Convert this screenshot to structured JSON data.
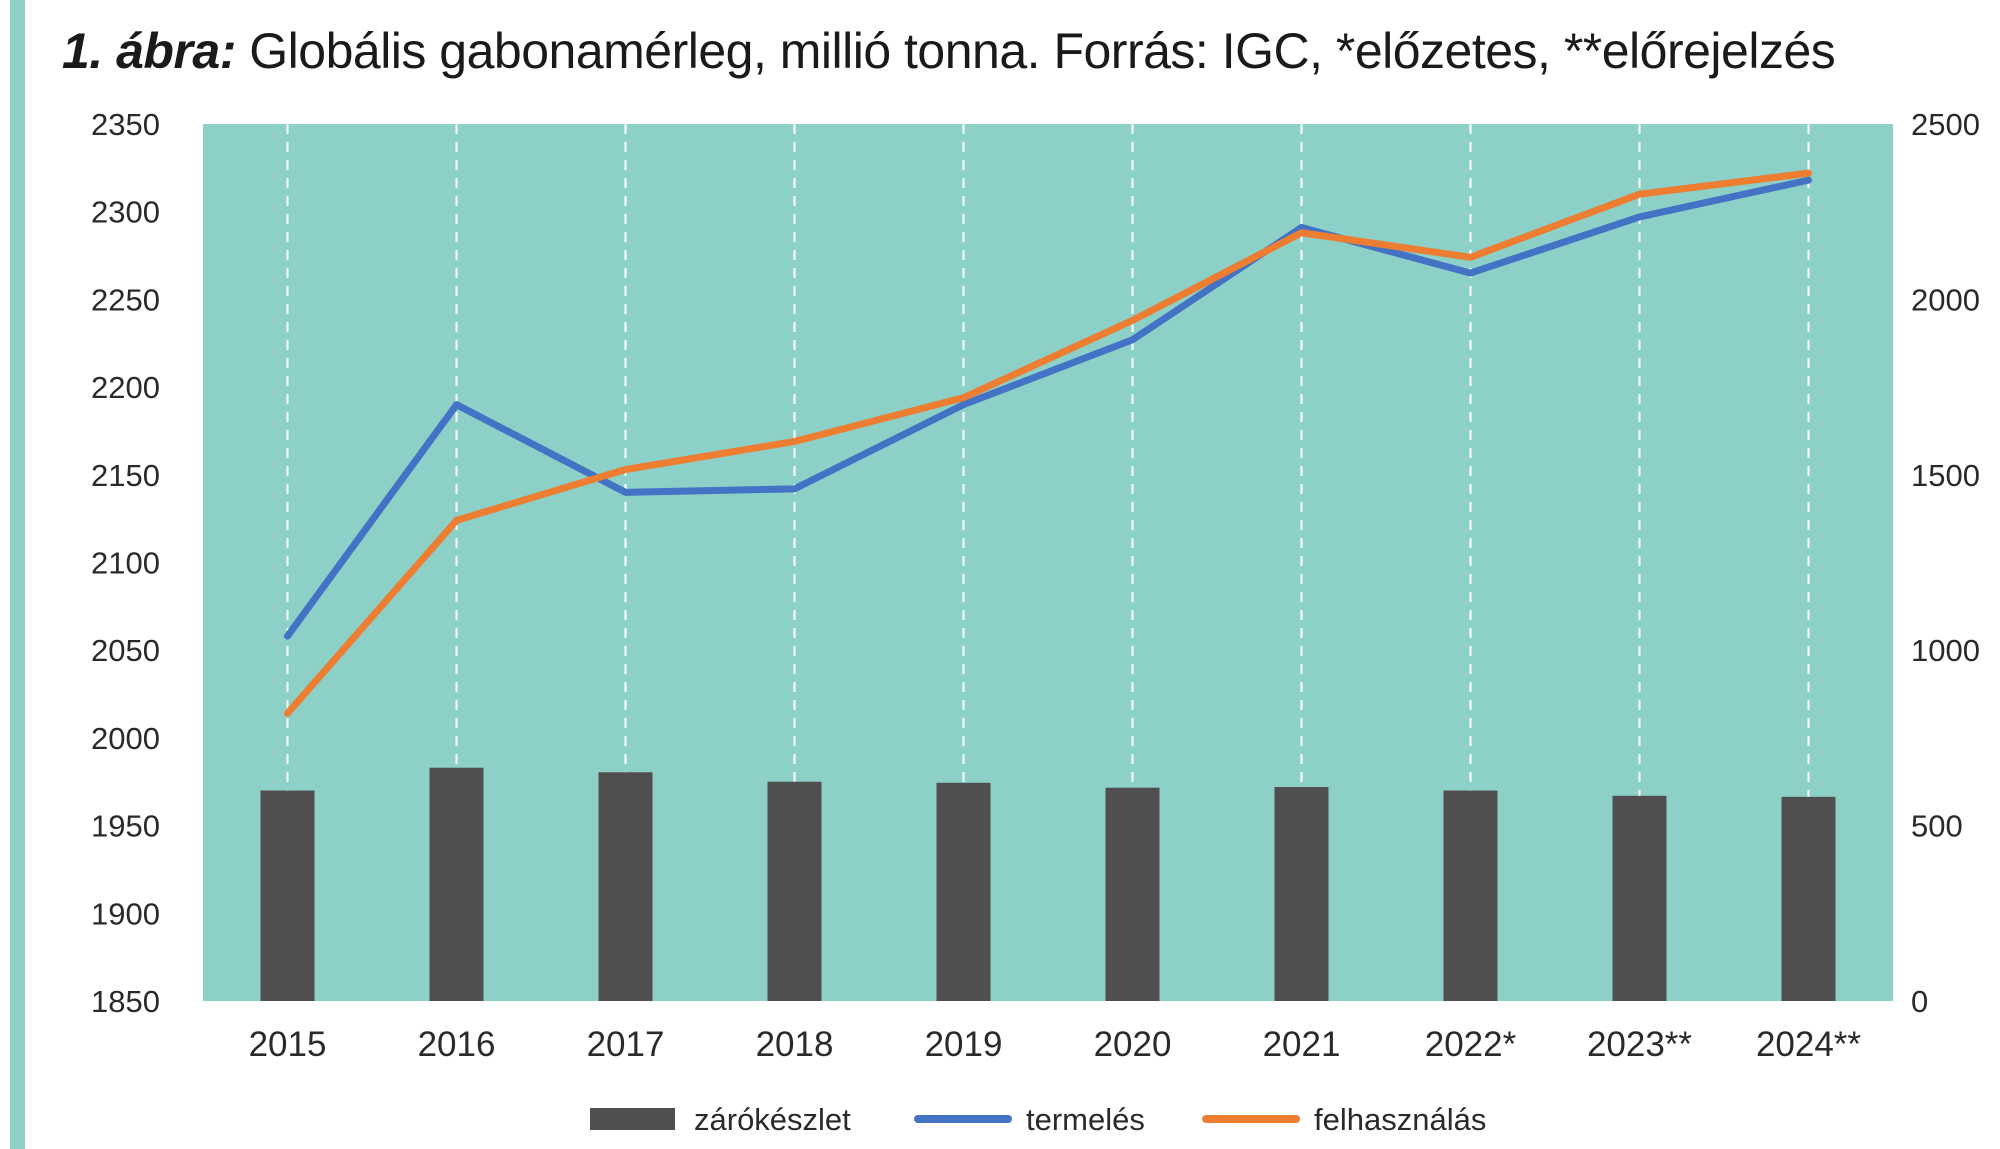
{
  "title": {
    "prefix": "1. ábra:",
    "text": "Globális gabonamérleg, millió tonna. Forrás: IGC, *előzetes, **előrejelzés"
  },
  "colors": {
    "plot_bg": "#8dd0c8",
    "bars": "#4f4f50",
    "termeles": "#4472c4",
    "felhasznalas": "#ed7d31",
    "accent": "#8fd1c9"
  },
  "chart_data": {
    "type": "bar+line",
    "categories": [
      "2015",
      "2016",
      "2017",
      "2018",
      "2019",
      "2020",
      "2021",
      "2022*",
      "2023**",
      "2024**"
    ],
    "y_left": {
      "min": 1850,
      "max": 2350,
      "step": 50,
      "ticks": [
        "2350",
        "2300",
        "2250",
        "2200",
        "2150",
        "2100",
        "2050",
        "2000",
        "1950",
        "1900",
        "1850"
      ]
    },
    "y_right": {
      "min": 0,
      "max": 2500,
      "step": 500,
      "ticks": [
        "2500",
        "2000",
        "1500",
        "1000",
        "500",
        "0"
      ]
    },
    "series": [
      {
        "name": "zárókészlet",
        "type": "bar",
        "axis": "right",
        "values": [
          600,
          665,
          652,
          625,
          622,
          608,
          610,
          600,
          585,
          582
        ]
      },
      {
        "name": "termelés",
        "type": "line",
        "axis": "left",
        "values": [
          2058,
          2190,
          2140,
          2142,
          2190,
          2227,
          2291,
          2265,
          2297,
          2318
        ]
      },
      {
        "name": "felhasználás",
        "type": "line",
        "axis": "left",
        "values": [
          2014,
          2124,
          2153,
          2169,
          2194,
          2238,
          2288,
          2274,
          2310,
          2322
        ]
      }
    ],
    "grid": "vertical-dashed",
    "legend": "bottom-center"
  }
}
